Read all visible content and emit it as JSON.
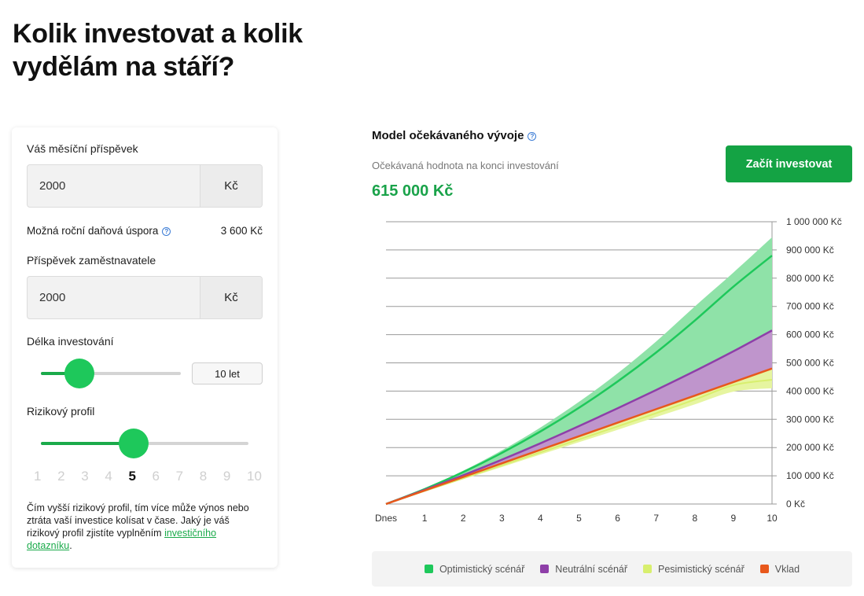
{
  "page": {
    "title": "Kolik investovat a kolik vydělám na stáří?"
  },
  "calculator": {
    "monthly_label": "Váš měsíční příspěvek",
    "monthly_value": "2000",
    "currency_unit": "Kč",
    "tax_label": "Možná roční daňová úspora",
    "tax_value": "3 600 Kč",
    "employer_label": "Příspěvek zaměstnavatele",
    "employer_value": "2000",
    "duration_label": "Délka investování",
    "duration_value": "10 let",
    "duration_years": 10,
    "risk_label": "Rizikový profil",
    "risk_scale": [
      "1",
      "2",
      "3",
      "4",
      "5",
      "6",
      "7",
      "8",
      "9",
      "10"
    ],
    "risk_selected": 5,
    "risk_note_text": "Čím vyšší rizikový profil, tím více může výnos nebo ztráta vaší investice kolísat v čase. Jaký je váš rizikový profil zjistíte vyplněním ",
    "risk_note_link": "investičního dotazníku",
    "risk_note_end": "."
  },
  "model": {
    "title": "Model očekávaného vývoje",
    "subtitle": "Očekávaná hodnota na konci investování",
    "value": "615 000 Kč",
    "cta": "Začít investovat"
  },
  "colors": {
    "optimistic": "#1ec85b",
    "optimistic_band": "#8fe2a8",
    "neutral": "#8e3fa8",
    "neutral_band": "#bf95cc",
    "pessimistic": "#d8ef6e",
    "pessimistic_band": "#e6f5a0",
    "deposit": "#e8581c",
    "accent": "#14a344"
  },
  "chart_data": {
    "type": "area",
    "x": [
      0,
      1,
      2,
      3,
      4,
      5,
      6,
      7,
      8,
      9,
      10
    ],
    "x_tick_labels": [
      "Dnes",
      "1",
      "2",
      "3",
      "4",
      "5",
      "6",
      "7",
      "8",
      "9",
      "10"
    ],
    "y_tick_labels": [
      "0 Kč",
      "100 000 Kč",
      "200 000 Kč",
      "300 000 Kč",
      "400 000 Kč",
      "500 000 Kč",
      "600 000 Kč",
      "700 000 Kč",
      "800 000 Kč",
      "900 000 Kč",
      "1 000 000 Kč"
    ],
    "ylim": [
      0,
      1000000
    ],
    "series": [
      {
        "name": "Optimistický scénář",
        "line": [
          0,
          53000,
          113000,
          181000,
          257000,
          341000,
          434000,
          537000,
          650000,
          770000,
          880000
        ],
        "upper": [
          0,
          55000,
          118000,
          190000,
          271000,
          362000,
          463000,
          576000,
          700000,
          820000,
          945000
        ]
      },
      {
        "name": "Neutrální scénář",
        "line": [
          0,
          50000,
          102000,
          157000,
          215000,
          276000,
          339000,
          404000,
          471000,
          541000,
          615000
        ]
      },
      {
        "name": "Pesimistický scénář",
        "line": [
          0,
          46000,
          91000,
          137000,
          183000,
          229000,
          275000,
          322000,
          370000,
          421000,
          440000
        ],
        "lower": [
          0,
          44000,
          88000,
          131000,
          175000,
          219000,
          263000,
          308000,
          353000,
          398000,
          410000
        ]
      },
      {
        "name": "Vklad",
        "line": [
          0,
          48000,
          96000,
          144000,
          192000,
          240000,
          288000,
          336000,
          384000,
          432000,
          480000
        ]
      }
    ],
    "legend": [
      "Optimistický scénář",
      "Neutrální scénář",
      "Pesimistický scénář",
      "Vklad"
    ]
  }
}
